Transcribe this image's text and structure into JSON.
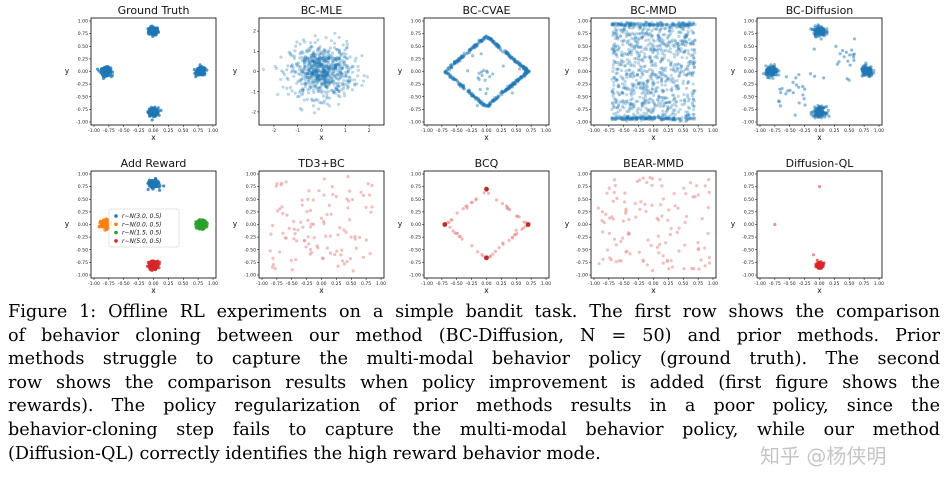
{
  "figure": {
    "charts": [
      {
        "id": "gt",
        "title": "Ground Truth",
        "type": "scatter",
        "color": "#1f77b4",
        "alpha": 0.75,
        "xlim": [
          -1.0,
          1.0
        ],
        "ylim": [
          -1.0,
          1.0
        ],
        "xticks": [
          "-1.00",
          "-0.75",
          "-0.50",
          "-0.25",
          "0.00",
          "0.25",
          "0.50",
          "0.75",
          "1.00"
        ],
        "yticks": [
          "1.00",
          "0.75",
          "0.50",
          "0.25",
          "0.00",
          "-0.25",
          "-0.50",
          "-0.75",
          "-1.00"
        ],
        "xlabel": "x",
        "ylabel": "y",
        "clusters": [
          {
            "x": 0.0,
            "y": 0.8,
            "sd": 0.04,
            "n": 160
          },
          {
            "x": -0.8,
            "y": 0.0,
            "sd": 0.04,
            "n": 160
          },
          {
            "x": 0.8,
            "y": 0.0,
            "sd": 0.04,
            "n": 160
          },
          {
            "x": 0.0,
            "y": -0.8,
            "sd": 0.04,
            "n": 160
          }
        ]
      },
      {
        "id": "bcmle",
        "title": "BC-MLE",
        "type": "scatter",
        "color": "#1f77b4",
        "alpha": 0.3,
        "xlim": [
          -2.5,
          2.5
        ],
        "ylim": [
          -2.5,
          2.5
        ],
        "xticks": [
          "-2",
          "-1",
          "0",
          "1",
          "2"
        ],
        "yticks": [
          "2",
          "1",
          "0",
          "-1",
          "-2"
        ],
        "xlabel": "x",
        "ylabel": "y",
        "clusters": [
          {
            "x": 0.0,
            "y": 0.0,
            "sd": 0.65,
            "n": 700
          }
        ]
      },
      {
        "id": "bccvae",
        "title": "BC-CVAE",
        "type": "scatter",
        "color": "#1f77b4",
        "alpha": 0.45,
        "xlim": [
          -1.0,
          1.0
        ],
        "ylim": [
          -1.0,
          1.0
        ],
        "xticks": [
          "-1.00",
          "-0.75",
          "-0.50",
          "-0.25",
          "0.00",
          "0.25",
          "0.50",
          "0.75",
          "1.00"
        ],
        "yticks": [
          "1.00",
          "0.75",
          "0.50",
          "0.25",
          "0.00",
          "-0.25",
          "-0.50",
          "-0.75",
          "-1.00"
        ],
        "xlabel": "x",
        "ylabel": "y",
        "diamond": {
          "r": 0.7,
          "n": 420
        },
        "clusters": [
          {
            "x": 0.0,
            "y": 0.0,
            "sd": 0.25,
            "n": 25
          }
        ]
      },
      {
        "id": "bcmmd",
        "title": "BC-MMD",
        "type": "scatter",
        "color": "#1f77b4",
        "alpha": 0.3,
        "xlim": [
          -1.0,
          1.0
        ],
        "ylim": [
          -1.0,
          1.0
        ],
        "xticks": [
          "-1.00",
          "-0.75",
          "-0.50",
          "-0.25",
          "0.00",
          "0.25",
          "0.50",
          "0.75",
          "1.00"
        ],
        "yticks": [
          "1.00",
          "0.75",
          "0.50",
          "0.25",
          "0.00",
          "-0.25",
          "-0.50",
          "-0.75",
          "-1.00"
        ],
        "xlabel": "x",
        "ylabel": "y",
        "uniform": {
          "x": [
            -0.7,
            0.7
          ],
          "y": [
            -0.97,
            0.97
          ],
          "n": 900
        },
        "bands": [
          {
            "y": 0.93,
            "n": 140
          },
          {
            "y": -0.93,
            "n": 140
          }
        ]
      },
      {
        "id": "bcdiff",
        "title": "BC-Diffusion",
        "type": "scatter",
        "color": "#1f77b4",
        "alpha": 0.5,
        "xlim": [
          -1.0,
          1.0
        ],
        "ylim": [
          -1.0,
          1.0
        ],
        "xticks": [
          "-1.00",
          "-0.75",
          "-0.50",
          "-0.25",
          "0.00",
          "0.25",
          "0.50",
          "0.75",
          "1.00"
        ],
        "yticks": [
          "1.00",
          "0.75",
          "0.50",
          "0.25",
          "0.00",
          "-0.25",
          "-0.50",
          "-0.75",
          "-1.00"
        ],
        "xlabel": "x",
        "ylabel": "y",
        "clusters": [
          {
            "x": 0.0,
            "y": 0.8,
            "sd": 0.05,
            "n": 140
          },
          {
            "x": -0.8,
            "y": 0.0,
            "sd": 0.05,
            "n": 140
          },
          {
            "x": 0.8,
            "y": 0.0,
            "sd": 0.05,
            "n": 140
          },
          {
            "x": 0.0,
            "y": -0.8,
            "sd": 0.05,
            "n": 140
          },
          {
            "x": -0.4,
            "y": -0.4,
            "sd": 0.2,
            "n": 25
          },
          {
            "x": 0.4,
            "y": 0.3,
            "sd": 0.2,
            "n": 20
          }
        ]
      },
      {
        "id": "reward",
        "title": "Add Reward",
        "type": "scatter",
        "alpha": 0.8,
        "xlim": [
          -1.0,
          1.0
        ],
        "ylim": [
          -1.0,
          1.0
        ],
        "xticks": [
          "-1.00",
          "-0.75",
          "-0.50",
          "-0.25",
          "0.00",
          "0.25",
          "0.50",
          "0.75",
          "1.00"
        ],
        "yticks": [
          "1.00",
          "0.75",
          "0.50",
          "0.25",
          "0.00",
          "-0.25",
          "-0.50",
          "-0.75",
          "-1.00"
        ],
        "xlabel": "x",
        "ylabel": "y",
        "clusters": [
          {
            "x": 0.0,
            "y": 0.8,
            "sd": 0.04,
            "n": 160,
            "color": "#1f77b4"
          },
          {
            "x": -0.8,
            "y": 0.0,
            "sd": 0.04,
            "n": 160,
            "color": "#ff7f0e"
          },
          {
            "x": 0.8,
            "y": 0.0,
            "sd": 0.04,
            "n": 160,
            "color": "#2ca02c"
          },
          {
            "x": 0.0,
            "y": -0.8,
            "sd": 0.04,
            "n": 160,
            "color": "#d62728"
          }
        ],
        "legend": [
          {
            "label": "r∼N(3.0, 0.5)",
            "color": "#1f77b4"
          },
          {
            "label": "r∼N(0.0, 0.5)",
            "color": "#ff7f0e"
          },
          {
            "label": "r∼N(1.5, 0.5)",
            "color": "#2ca02c"
          },
          {
            "label": "r∼N(5.0, 0.5)",
            "color": "#d62728"
          }
        ]
      },
      {
        "id": "td3bc",
        "title": "TD3+BC",
        "type": "scatter",
        "color": "#e88a8a",
        "alpha": 0.55,
        "xlim": [
          -1.0,
          1.0
        ],
        "ylim": [
          -1.0,
          1.0
        ],
        "xticks": [
          "-1.00",
          "-0.75",
          "-0.50",
          "-0.25",
          "0.00",
          "0.25",
          "0.50",
          "0.75",
          "1.00"
        ],
        "yticks": [
          "1.00",
          "0.75",
          "0.50",
          "0.25",
          "0.00",
          "-0.25",
          "-0.50",
          "-0.75",
          "-1.00"
        ],
        "xlabel": "x",
        "ylabel": "y",
        "uniform": {
          "x": [
            -0.9,
            0.9
          ],
          "y": [
            -0.95,
            0.95
          ],
          "n": 110
        }
      },
      {
        "id": "bcq",
        "title": "BCQ",
        "type": "scatter",
        "color": "#e88a8a",
        "alpha": 0.6,
        "xlim": [
          -1.0,
          1.0
        ],
        "ylim": [
          -1.0,
          1.0
        ],
        "xticks": [
          "-1.00",
          "-0.75",
          "-0.50",
          "-0.25",
          "0.00",
          "0.25",
          "0.50",
          "0.75",
          "1.00"
        ],
        "yticks": [
          "1.00",
          "0.75",
          "0.50",
          "0.25",
          "0.00",
          "-0.25",
          "-0.50",
          "-0.75",
          "-1.00"
        ],
        "xlabel": "x",
        "ylabel": "y",
        "diamond": {
          "r": 0.68,
          "n": 60
        },
        "highlights": [
          {
            "x": 0.0,
            "y": 0.7
          },
          {
            "x": -0.7,
            "y": 0.0
          },
          {
            "x": 0.7,
            "y": 0.0
          },
          {
            "x": 0.0,
            "y": -0.66
          }
        ],
        "highlightColor": "#c0282a"
      },
      {
        "id": "bearmmd",
        "title": "BEAR-MMD",
        "type": "scatter",
        "color": "#e88a8a",
        "alpha": 0.55,
        "xlim": [
          -1.0,
          1.0
        ],
        "ylim": [
          -1.0,
          1.0
        ],
        "xticks": [
          "-1.00",
          "-0.75",
          "-0.50",
          "-0.25",
          "0.00",
          "0.25",
          "0.50",
          "0.75",
          "1.00"
        ],
        "yticks": [
          "1.00",
          "0.75",
          "0.50",
          "0.25",
          "0.00",
          "-0.25",
          "-0.50",
          "-0.75",
          "-1.00"
        ],
        "xlabel": "x",
        "ylabel": "y",
        "uniform": {
          "x": [
            -0.95,
            0.95
          ],
          "y": [
            -0.95,
            0.95
          ],
          "n": 120
        }
      },
      {
        "id": "diffql",
        "title": "Diffusion-QL",
        "type": "scatter",
        "color": "#d62728",
        "alpha": 0.7,
        "xlim": [
          -1.0,
          1.0
        ],
        "ylim": [
          -1.0,
          1.0
        ],
        "xticks": [
          "-1.00",
          "-0.75",
          "-0.50",
          "-0.25",
          "0.00",
          "0.25",
          "0.50",
          "0.75",
          "1.00"
        ],
        "yticks": [
          "1.00",
          "0.75",
          "0.50",
          "0.25",
          "0.00",
          "-0.25",
          "-0.50",
          "-0.75",
          "-1.00"
        ],
        "xlabel": "x",
        "ylabel": "y",
        "clusters": [
          {
            "x": 0.0,
            "y": -0.8,
            "sd": 0.03,
            "n": 120
          }
        ],
        "extras": [
          {
            "x": 0.0,
            "y": 0.75
          },
          {
            "x": -0.75,
            "y": 0.0
          },
          {
            "x": -0.1,
            "y": -0.6
          }
        ]
      }
    ]
  },
  "caption": {
    "lines": [
      "Figure 1: Offline RL experiments on a simple bandit task. The first row shows the comparison",
      "of behavior cloning between our method (BC-Diffusion, N = 50) and prior methods. Prior",
      "methods struggle to capture the multi-modal behavior policy (ground truth). The second",
      "row shows the comparison results when policy improvement is added (first figure shows the",
      "rewards). The policy regularization of prior methods results in a poor policy, since the",
      "behavior-cloning step fails to capture the multi-modal behavior policy, while our method",
      "(Diffusion-QL) correctly identifies the high reward behavior mode."
    ]
  },
  "watermark": "知乎 @杨侠明"
}
